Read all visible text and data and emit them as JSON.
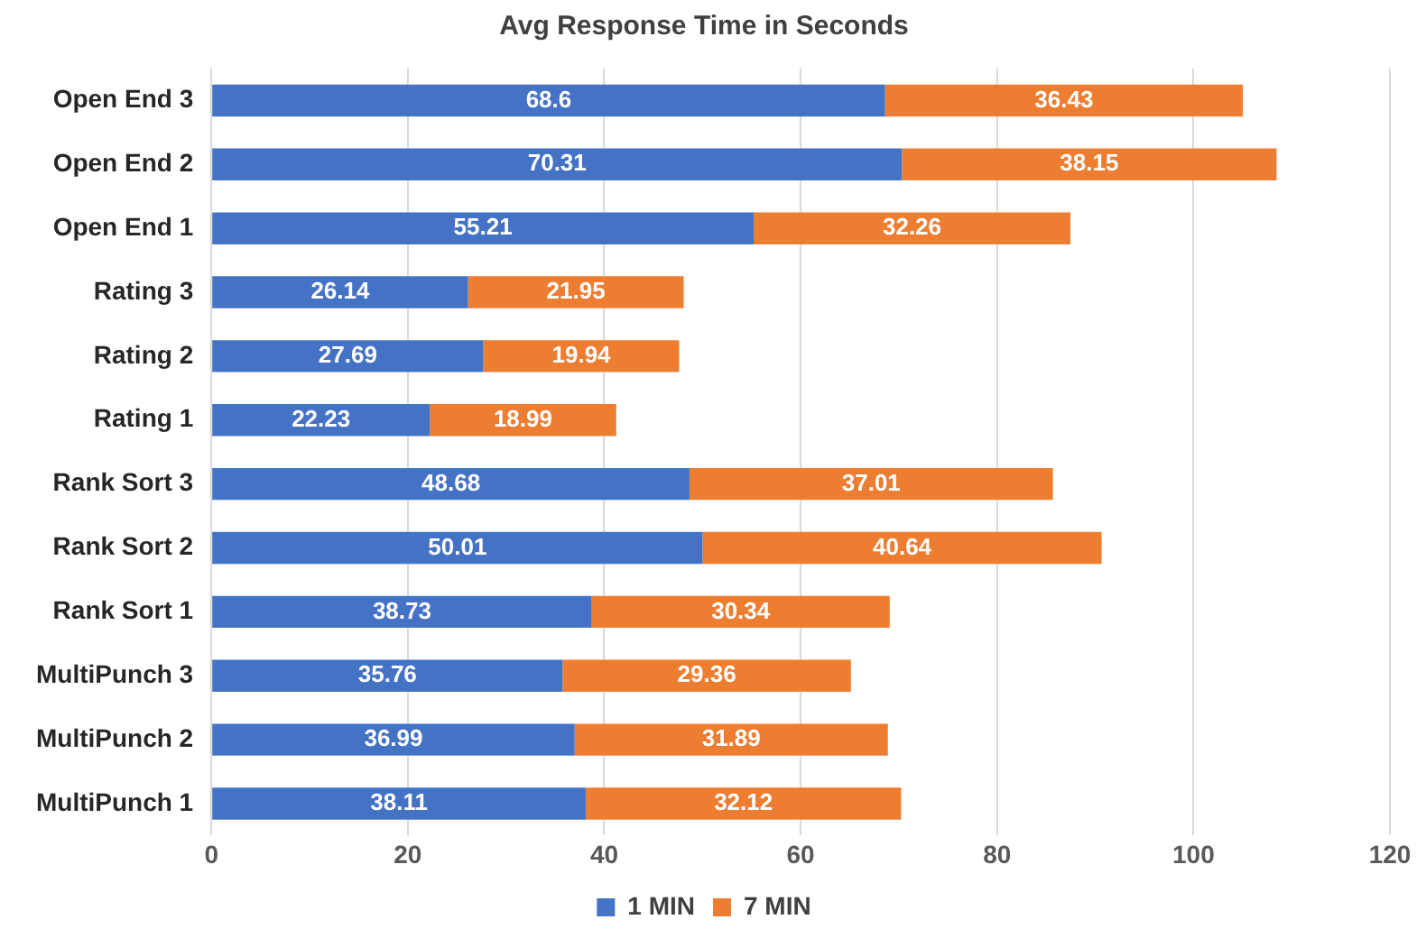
{
  "chart_data": {
    "type": "bar",
    "title": "Avg Response Time in Seconds",
    "orientation": "horizontal",
    "stacked": true,
    "categories": [
      "Open End 3",
      "Open End 2",
      "Open End 1",
      "Rating 3",
      "Rating 2",
      "Rating 1",
      "Rank Sort 3",
      "Rank Sort 2",
      "Rank Sort 1",
      "MultiPunch 3",
      "MultiPunch 2",
      "MultiPunch 1"
    ],
    "series": [
      {
        "name": "1 MIN",
        "color": "#4472c4",
        "values": [
          68.6,
          70.31,
          55.21,
          26.14,
          27.69,
          22.23,
          48.68,
          50.01,
          38.73,
          35.76,
          36.99,
          38.11
        ]
      },
      {
        "name": "7 MIN",
        "color": "#ed7d31",
        "values": [
          36.43,
          38.15,
          32.26,
          21.95,
          19.94,
          18.99,
          37.01,
          40.64,
          30.34,
          29.36,
          31.89,
          32.12
        ]
      }
    ],
    "xlim": [
      0,
      120
    ],
    "xticks": [
      0,
      20,
      40,
      60,
      80,
      100,
      120
    ],
    "grid": "x",
    "legend": "bottom",
    "data_labels": true
  }
}
